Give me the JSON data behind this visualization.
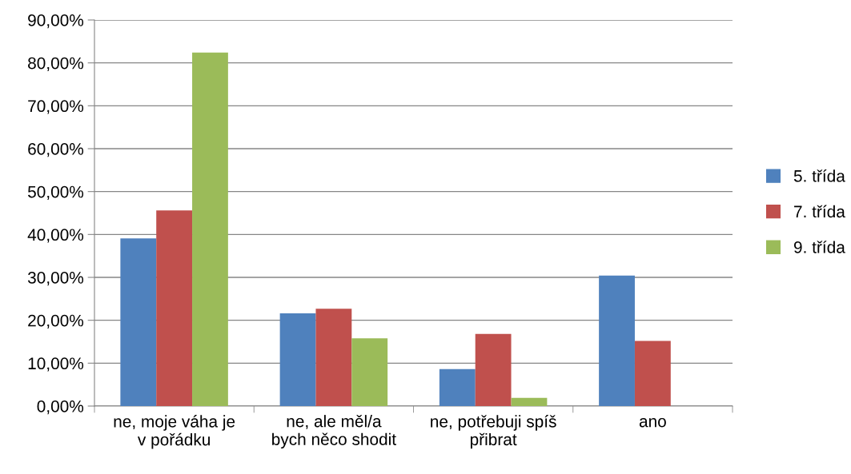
{
  "chart_data": {
    "type": "bar",
    "categories": [
      "ne, moje váha je\nv pořádku",
      "ne, ale měl/a\nbych něco shodit",
      "ne, potřebuji spíš\npřibrat",
      "ano"
    ],
    "series": [
      {
        "name": "5. třída",
        "color": "#4f81bd",
        "values": [
          39.1,
          21.6,
          8.6,
          30.4
        ]
      },
      {
        "name": "7. třída",
        "color": "#c0504d",
        "values": [
          45.6,
          22.7,
          16.8,
          15.2
        ]
      },
      {
        "name": "9. třída",
        "color": "#9bbb59",
        "values": [
          82.4,
          15.8,
          1.9,
          null
        ]
      }
    ],
    "ylim": [
      0,
      90
    ],
    "yticks": [
      {
        "value": 0,
        "label": "0,00%"
      },
      {
        "value": 10,
        "label": "10,00%"
      },
      {
        "value": 20,
        "label": "20,00%"
      },
      {
        "value": 30,
        "label": "30,00%"
      },
      {
        "value": 40,
        "label": "40,00%"
      },
      {
        "value": 50,
        "label": "50,00%"
      },
      {
        "value": 60,
        "label": "60,00%"
      },
      {
        "value": 70,
        "label": "70,00%"
      },
      {
        "value": 80,
        "label": "80,00%"
      },
      {
        "value": 90,
        "label": "90,00%"
      }
    ],
    "grid": "y",
    "legend": "right"
  }
}
